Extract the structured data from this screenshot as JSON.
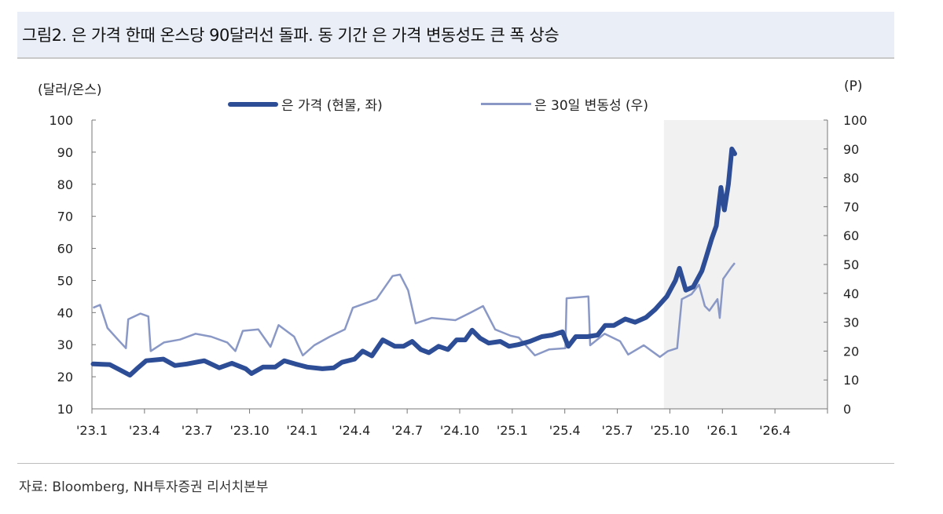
{
  "title": "그림2. 은 가격 한때 온스당 90달러선 돌파. 동 기간 은 가격 변동성도 큰 폭 상승",
  "source": "자료: Bloomberg, NH투자증권 리서치본부",
  "chart_data": {
    "type": "line",
    "left_unit": "(달러/온스)",
    "right_unit": "(P)",
    "left_ylim": [
      10,
      100
    ],
    "right_ylim": [
      0,
      100
    ],
    "left_ticks": [
      "10",
      "20",
      "30",
      "40",
      "50",
      "60",
      "70",
      "80",
      "90",
      "100"
    ],
    "right_ticks": [
      "0",
      "10",
      "20",
      "30",
      "40",
      "50",
      "60",
      "70",
      "80",
      "90",
      "100"
    ],
    "xlim": [
      "2023-01-01",
      "2026-07-01"
    ],
    "x_ticks": [
      "'23.1",
      "'23.4",
      "'23.7",
      "'23.10",
      "'24.1",
      "'24.4",
      "'24.7",
      "'24.10",
      "'25.1",
      "'25.4",
      "'25.7",
      "'25.10",
      "'26.1",
      "'26.4"
    ],
    "shaded_region": [
      "2025-09-20",
      "2026-07-01"
    ],
    "grid": false,
    "legend_position": "top-center",
    "colors": {
      "price": "#2d4d96",
      "volatility": "#8a98c6",
      "shade": "#f1f1f1"
    },
    "series": [
      {
        "name": "은 가격 (현물, 좌)",
        "axis": "left",
        "points": [
          [
            "2023-01-03",
            24
          ],
          [
            "2023-02-01",
            23.8
          ],
          [
            "2023-02-20",
            22
          ],
          [
            "2023-03-08",
            20.5
          ],
          [
            "2023-03-20",
            22.5
          ],
          [
            "2023-04-05",
            25
          ],
          [
            "2023-05-05",
            25.5
          ],
          [
            "2023-05-25",
            23.5
          ],
          [
            "2023-06-15",
            24
          ],
          [
            "2023-07-15",
            25
          ],
          [
            "2023-08-10",
            22.8
          ],
          [
            "2023-09-01",
            24.2
          ],
          [
            "2023-09-25",
            22.5
          ],
          [
            "2023-10-05",
            21
          ],
          [
            "2023-10-25",
            23
          ],
          [
            "2023-11-15",
            23
          ],
          [
            "2023-12-01",
            25
          ],
          [
            "2023-12-20",
            24
          ],
          [
            "2024-01-10",
            23
          ],
          [
            "2024-02-05",
            22.5
          ],
          [
            "2024-02-25",
            22.8
          ],
          [
            "2024-03-10",
            24.5
          ],
          [
            "2024-04-01",
            25.5
          ],
          [
            "2024-04-15",
            28
          ],
          [
            "2024-05-01",
            26.5
          ],
          [
            "2024-05-20",
            31.5
          ],
          [
            "2024-06-10",
            29.5
          ],
          [
            "2024-06-25",
            29.5
          ],
          [
            "2024-07-10",
            31
          ],
          [
            "2024-07-25",
            28.5
          ],
          [
            "2024-08-08",
            27.5
          ],
          [
            "2024-08-25",
            29.5
          ],
          [
            "2024-09-10",
            28.5
          ],
          [
            "2024-09-25",
            31.5
          ],
          [
            "2024-10-10",
            31.5
          ],
          [
            "2024-10-22",
            34.5
          ],
          [
            "2024-11-05",
            32
          ],
          [
            "2024-11-20",
            30.5
          ],
          [
            "2024-12-10",
            31
          ],
          [
            "2024-12-25",
            29.5
          ],
          [
            "2025-01-10",
            30
          ],
          [
            "2025-01-30",
            31
          ],
          [
            "2025-02-20",
            32.5
          ],
          [
            "2025-03-10",
            33
          ],
          [
            "2025-03-28",
            34
          ],
          [
            "2025-04-07",
            29.5
          ],
          [
            "2025-04-20",
            32.5
          ],
          [
            "2025-05-10",
            32.5
          ],
          [
            "2025-05-28",
            33
          ],
          [
            "2025-06-10",
            36
          ],
          [
            "2025-06-25",
            36
          ],
          [
            "2025-07-15",
            38
          ],
          [
            "2025-08-01",
            37
          ],
          [
            "2025-08-20",
            38.5
          ],
          [
            "2025-09-05",
            41
          ],
          [
            "2025-09-25",
            45
          ],
          [
            "2025-10-10",
            50
          ],
          [
            "2025-10-17",
            53.8
          ],
          [
            "2025-10-28",
            47
          ],
          [
            "2025-11-10",
            48
          ],
          [
            "2025-11-25",
            53
          ],
          [
            "2025-12-02",
            57
          ],
          [
            "2025-12-12",
            63
          ],
          [
            "2025-12-20",
            67
          ],
          [
            "2025-12-28",
            79
          ],
          [
            "2026-01-03",
            72
          ],
          [
            "2026-01-10",
            80
          ],
          [
            "2026-01-16",
            91
          ],
          [
            "2026-01-21",
            89.5
          ]
        ]
      },
      {
        "name": "은 30일 변동성 (우)",
        "axis": "right",
        "points": [
          [
            "2023-01-03",
            35
          ],
          [
            "2023-01-15",
            36
          ],
          [
            "2023-01-28",
            28
          ],
          [
            "2023-02-15",
            24
          ],
          [
            "2023-03-01",
            21
          ],
          [
            "2023-03-05",
            31
          ],
          [
            "2023-03-26",
            33
          ],
          [
            "2023-04-09",
            32
          ],
          [
            "2023-04-13",
            20
          ],
          [
            "2023-05-06",
            23
          ],
          [
            "2023-06-03",
            24
          ],
          [
            "2023-06-30",
            26
          ],
          [
            "2023-07-27",
            25
          ],
          [
            "2023-08-24",
            23
          ],
          [
            "2023-09-07",
            20
          ],
          [
            "2023-09-20",
            27
          ],
          [
            "2023-10-17",
            27.5
          ],
          [
            "2023-11-07",
            21.5
          ],
          [
            "2023-11-21",
            29
          ],
          [
            "2023-12-18",
            25
          ],
          [
            "2024-01-02",
            18.5
          ],
          [
            "2024-01-22",
            22
          ],
          [
            "2024-02-18",
            25
          ],
          [
            "2024-03-15",
            27.5
          ],
          [
            "2024-03-29",
            35
          ],
          [
            "2024-04-26",
            37
          ],
          [
            "2024-05-09",
            38
          ],
          [
            "2024-06-06",
            46
          ],
          [
            "2024-06-19",
            46.5
          ],
          [
            "2024-07-03",
            41
          ],
          [
            "2024-07-16",
            29.6
          ],
          [
            "2024-08-13",
            31.5
          ],
          [
            "2024-09-23",
            30.7
          ],
          [
            "2024-10-20",
            33.4
          ],
          [
            "2024-11-10",
            35.6
          ],
          [
            "2024-12-01",
            27.5
          ],
          [
            "2024-12-28",
            25.3
          ],
          [
            "2025-01-11",
            24.7
          ],
          [
            "2025-02-08",
            18.5
          ],
          [
            "2025-03-05",
            20.6
          ],
          [
            "2025-04-02",
            21
          ],
          [
            "2025-04-04",
            38.3
          ],
          [
            "2025-05-12",
            38.9
          ],
          [
            "2025-05-15",
            22
          ],
          [
            "2025-06-09",
            26
          ],
          [
            "2025-07-06",
            23.4
          ],
          [
            "2025-07-20",
            18.8
          ],
          [
            "2025-08-16",
            22
          ],
          [
            "2025-09-13",
            18
          ],
          [
            "2025-09-27",
            20
          ],
          [
            "2025-10-13",
            21
          ],
          [
            "2025-10-21",
            38
          ],
          [
            "2025-11-07",
            39.7
          ],
          [
            "2025-11-20",
            43
          ],
          [
            "2025-11-30",
            35.6
          ],
          [
            "2025-12-08",
            34
          ],
          [
            "2025-12-22",
            38
          ],
          [
            "2025-12-26",
            31.5
          ],
          [
            "2026-01-01",
            45
          ],
          [
            "2026-01-15",
            49
          ],
          [
            "2026-01-21",
            50.5
          ]
        ]
      }
    ]
  }
}
